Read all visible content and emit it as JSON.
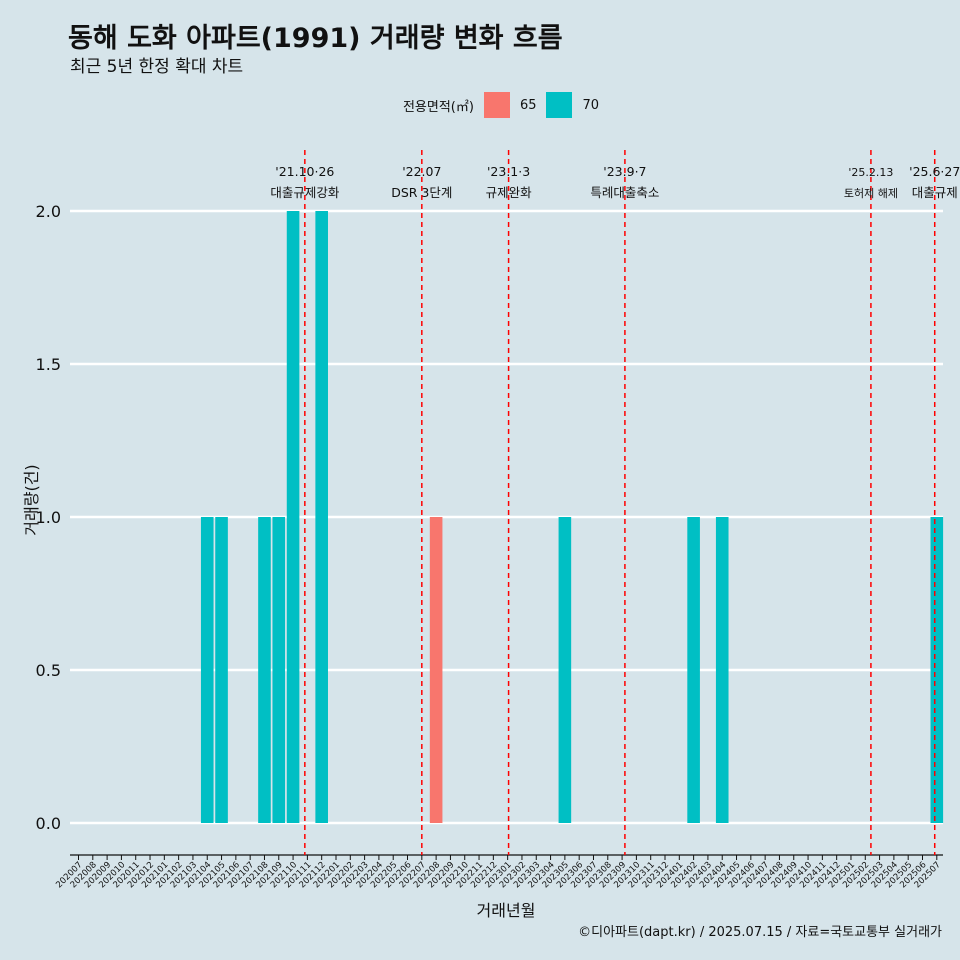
{
  "title": "동해 도화 아파트(1991) 거래량 변화 흐름",
  "subtitle": "최근 5년 한정 확대 차트",
  "caption": "©디아파트(dapt.kr) / 2025.07.15 / 자료=국토교통부 실거래가",
  "chart_data": {
    "type": "bar",
    "xlabel": "거래년월",
    "ylabel": "거래량(건)",
    "ylim": [
      -0.1,
      2.15
    ],
    "yticks": [
      0.0,
      0.5,
      1.0,
      1.5,
      2.0
    ],
    "ytick_labels": [
      "0.0",
      "0.5",
      "1.0",
      "1.5",
      "2.0"
    ],
    "grid": true,
    "categories": [
      "202007",
      "202008",
      "202009",
      "202010",
      "202011",
      "202012",
      "202101",
      "202102",
      "202103",
      "202104",
      "202105",
      "202106",
      "202107",
      "202108",
      "202109",
      "202110",
      "202111",
      "202112",
      "202201",
      "202202",
      "202203",
      "202204",
      "202205",
      "202206",
      "202207",
      "202208",
      "202209",
      "202210",
      "202211",
      "202212",
      "202301",
      "202302",
      "202303",
      "202304",
      "202305",
      "202306",
      "202307",
      "202308",
      "202309",
      "202310",
      "202311",
      "202312",
      "202401",
      "202402",
      "202403",
      "202404",
      "202405",
      "202406",
      "202407",
      "202408",
      "202409",
      "202410",
      "202411",
      "202412",
      "202501",
      "202502",
      "202503",
      "202504",
      "202505",
      "202506",
      "202507"
    ],
    "legend": {
      "title": "전용면적(㎡)",
      "position": "top"
    },
    "series": [
      {
        "name": "65",
        "color": "#f8766d",
        "points": [
          {
            "x": "202208",
            "y": 1
          }
        ]
      },
      {
        "name": "70",
        "color": "#00bfc4",
        "points": [
          {
            "x": "202104",
            "y": 1
          },
          {
            "x": "202105",
            "y": 1
          },
          {
            "x": "202108",
            "y": 1
          },
          {
            "x": "202109",
            "y": 1
          },
          {
            "x": "202110",
            "y": 2
          },
          {
            "x": "202112",
            "y": 2
          },
          {
            "x": "202305",
            "y": 1
          },
          {
            "x": "202402",
            "y": 1
          },
          {
            "x": "202404",
            "y": 1
          },
          {
            "x": "202507",
            "y": 1
          }
        ]
      }
    ],
    "annotations": [
      {
        "date": "2021-10-26",
        "lines": [
          "'21.10·26",
          "대출규제강화"
        ],
        "color": "#ff0000"
      },
      {
        "date": "2022-07-01",
        "lines": [
          "'22.07",
          "DSR 3단계"
        ],
        "color": "#ff0000"
      },
      {
        "date": "2023-01-03",
        "lines": [
          "'23.1·3",
          "규제완화"
        ],
        "color": "#ff0000"
      },
      {
        "date": "2023-09-07",
        "lines": [
          "'23.9·7",
          "특례대출축소"
        ],
        "color": "#ff0000"
      },
      {
        "date": "2025-02-13",
        "lines": [
          "'25.2.13",
          "토허제 해제"
        ],
        "color": "#ff0000",
        "small": true
      },
      {
        "date": "2025-06-27",
        "lines": [
          "'25.6·27",
          "대출규제"
        ],
        "color": "#ff0000"
      }
    ]
  }
}
